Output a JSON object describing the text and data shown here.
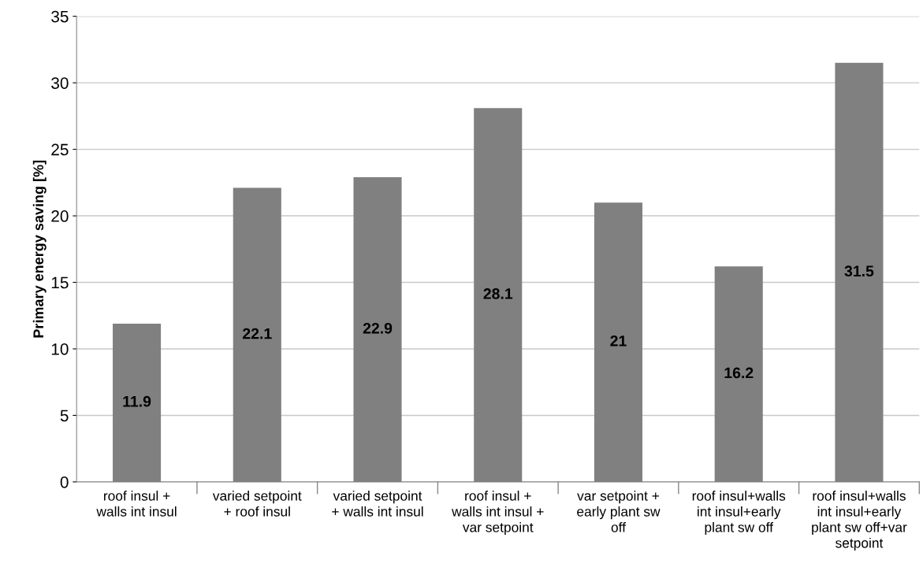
{
  "chart_data": {
    "type": "bar",
    "ylabel": "Primary energy saving [%]",
    "categories": [
      "roof insul +\nwalls int insul",
      "varied setpoint\n+ roof insul",
      "varied setpoint\n+ walls int insul",
      "roof insul +\nwalls int insul +\nvar setpoint",
      "var setpoint +\nearly plant sw\noff",
      "roof insul+walls\nint insul+early\nplant sw off",
      "roof insul+walls\nint insul+early\nplant sw off+var\nsetpoint"
    ],
    "values": [
      11.9,
      22.1,
      22.9,
      28.1,
      21,
      16.2,
      31.5
    ],
    "color": "#808080",
    "ylim": [
      0,
      35
    ],
    "yticks": [
      0,
      5,
      10,
      15,
      20,
      25,
      30,
      35
    ],
    "grid": "y",
    "data_labels": true
  }
}
